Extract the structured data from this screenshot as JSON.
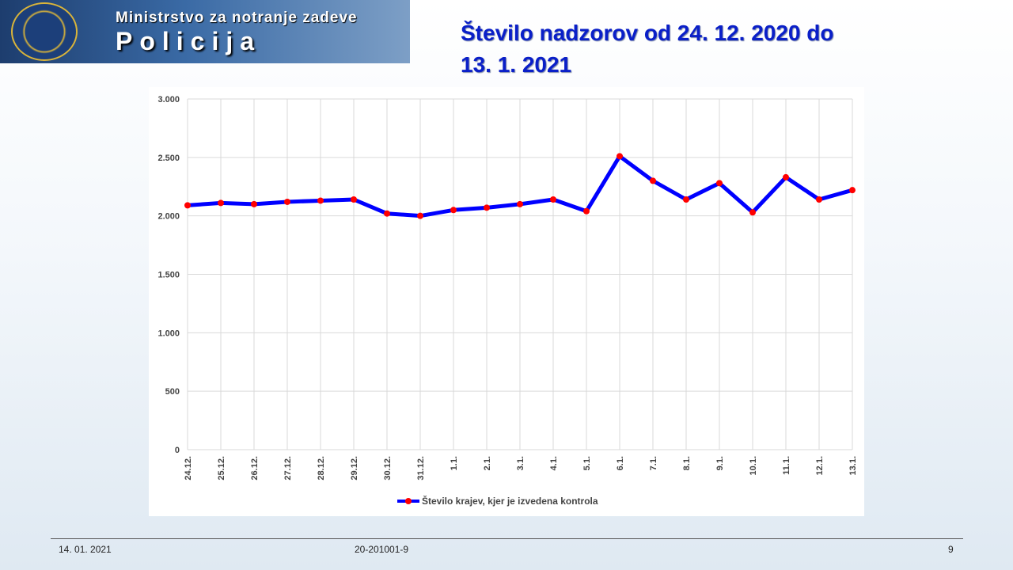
{
  "header": {
    "ministry": "Ministrstvo za notranje zadeve",
    "brand": "Policija"
  },
  "chart_data": {
    "type": "line",
    "title": "Število nadzorov od 24. 12. 2020 do 13. 1. 2021",
    "categories": [
      "24.12.",
      "25.12.",
      "26.12.",
      "27.12.",
      "28.12.",
      "29.12.",
      "30.12.",
      "31.12.",
      "1.1.",
      "2.1.",
      "3.1.",
      "4.1.",
      "5.1.",
      "6.1.",
      "7.1.",
      "8.1.",
      "9.1.",
      "10.1.",
      "11.1.",
      "12.1.",
      "13.1."
    ],
    "series": [
      {
        "name": "Število krajev, kjer je izvedena kontrola",
        "color": "#0000ff",
        "marker_color": "#ff0000",
        "values": [
          2090,
          2110,
          2100,
          2120,
          2130,
          2140,
          2020,
          2000,
          2050,
          2070,
          2100,
          2140,
          2040,
          2510,
          2300,
          2140,
          2280,
          2030,
          2330,
          2140,
          2220
        ]
      }
    ],
    "ylim": [
      0,
      3000
    ],
    "yticks": [
      0,
      500,
      {
        "value": 1000,
        "label": "1.000"
      },
      {
        "value": 1500,
        "label": "1.500"
      },
      {
        "value": 2000,
        "label": "2.000"
      },
      {
        "value": 2500,
        "label": "2.500"
      },
      {
        "value": 3000,
        "label": "3.000"
      }
    ],
    "grid": true,
    "legend": "bottom"
  },
  "footer": {
    "date": "14. 01. 2021",
    "code": "20-201001-9",
    "page": "9"
  }
}
